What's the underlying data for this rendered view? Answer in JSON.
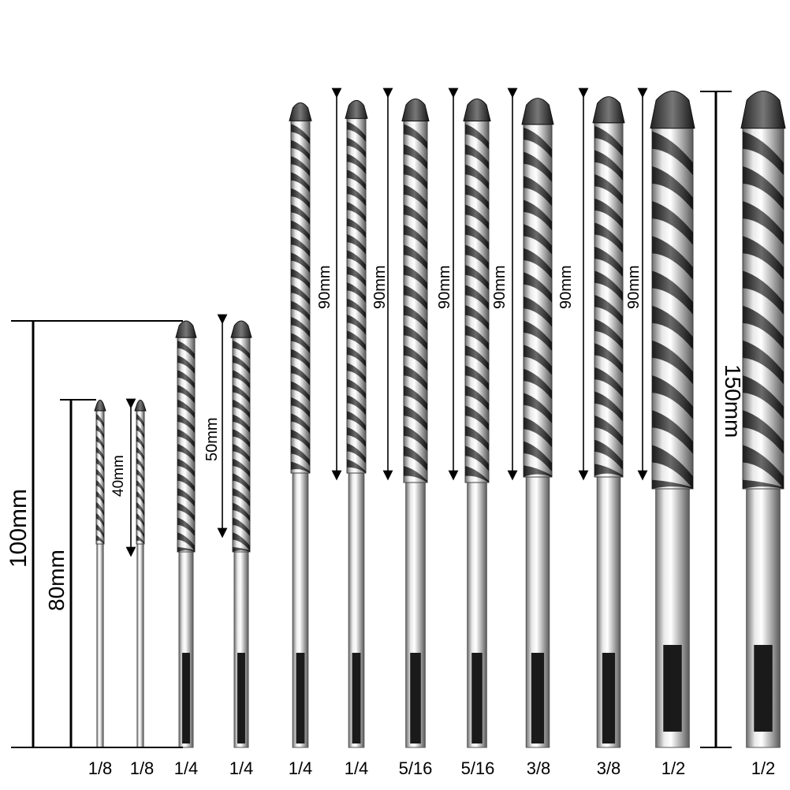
{
  "bits": [
    {
      "size": "1/8"
    },
    {
      "size": "1/8"
    },
    {
      "size": "1/4"
    },
    {
      "size": "1/4"
    },
    {
      "size": "1/4"
    },
    {
      "size": "1/4"
    },
    {
      "size": "5/16"
    },
    {
      "size": "5/16"
    },
    {
      "size": "3/8"
    },
    {
      "size": "3/8"
    },
    {
      "size": "1/2"
    },
    {
      "size": "1/2"
    }
  ],
  "dimensions": {
    "overall_100": "100mm",
    "overall_80": "80mm",
    "flute_40": "40mm",
    "flute_50": "50mm",
    "flute_90": "90mm",
    "overall_150": "150mm"
  },
  "colors": {
    "background": "#ffffff",
    "steel": "#c8c8c8",
    "flute": "#2a2a2a",
    "line": "#000000"
  }
}
